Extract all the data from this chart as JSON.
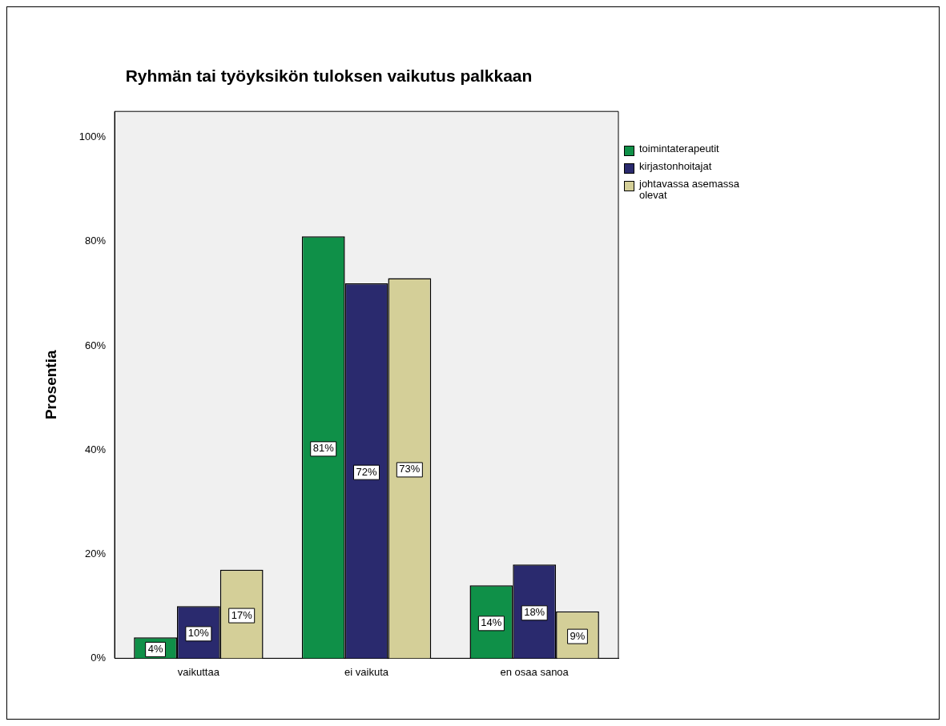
{
  "chart_data": {
    "type": "bar",
    "title": "Ryhmän tai työyksikön tuloksen vaikutus palkkaan",
    "ylabel": "Prosentia",
    "categories": [
      "vaikuttaa",
      "ei vaikuta",
      "en osaa sanoa"
    ],
    "series": [
      {
        "name": "toimintaterapeutit",
        "color": "#0f9048",
        "values": [
          4,
          81,
          14
        ],
        "value_labels": [
          "4%",
          "81%",
          "14%"
        ]
      },
      {
        "name": "kirjastonhoitajat",
        "color": "#2a2a6e",
        "values": [
          10,
          72,
          18
        ],
        "value_labels": [
          "10%",
          "72%",
          "18%"
        ]
      },
      {
        "name": "johtavassa asemassa olevat",
        "color": "#d4cf98",
        "values": [
          17,
          73,
          9
        ],
        "value_labels": [
          "17%",
          "73%",
          "9%"
        ]
      }
    ],
    "ylim": [
      0,
      105
    ],
    "yticks": [
      {
        "value": 0,
        "label": "0%"
      },
      {
        "value": 20,
        "label": "20%"
      },
      {
        "value": 40,
        "label": "40%"
      },
      {
        "value": 60,
        "label": "60%"
      },
      {
        "value": 80,
        "label": "80%"
      },
      {
        "value": 100,
        "label": "100%"
      }
    ],
    "grid": false,
    "legend": "top right"
  }
}
